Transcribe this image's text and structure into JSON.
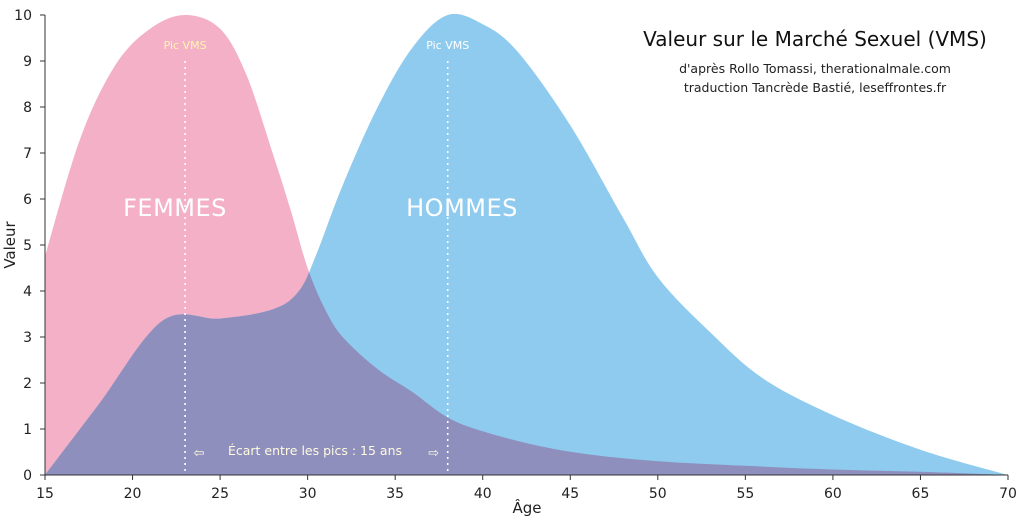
{
  "chart_data": {
    "type": "area",
    "title": "Valeur sur le Marché Sexuel (VMS)",
    "subtitle_lines": [
      "d'après Rollo Tomassi, therationalmale.com",
      "traduction Tancrède Bastié, leseffrontes.fr"
    ],
    "xlabel": "Âge",
    "ylabel": "Valeur",
    "xlim": [
      15,
      70
    ],
    "ylim": [
      0,
      10
    ],
    "x_ticks": [
      15,
      20,
      25,
      30,
      35,
      40,
      45,
      50,
      55,
      60,
      65,
      70
    ],
    "y_ticks": [
      0,
      1,
      2,
      3,
      4,
      5,
      6,
      7,
      8,
      9,
      10
    ],
    "grid": false,
    "series": [
      {
        "name": "FEMMES",
        "color": "#f4b0c6",
        "points": [
          [
            15,
            4.75
          ],
          [
            17,
            7.3
          ],
          [
            19,
            8.9
          ],
          [
            21,
            9.7
          ],
          [
            23,
            10
          ],
          [
            25,
            9.7
          ],
          [
            26.5,
            8.7
          ],
          [
            28,
            7
          ],
          [
            29,
            5.8
          ],
          [
            30,
            4.5
          ],
          [
            31,
            3.6
          ],
          [
            32,
            3.0
          ],
          [
            34,
            2.3
          ],
          [
            36,
            1.8
          ],
          [
            38,
            1.25
          ],
          [
            40,
            0.95
          ],
          [
            43,
            0.65
          ],
          [
            46,
            0.45
          ],
          [
            50,
            0.3
          ],
          [
            55,
            0.2
          ],
          [
            60,
            0.12
          ],
          [
            65,
            0.07
          ],
          [
            70,
            0
          ]
        ],
        "peak_x": 23
      },
      {
        "name": "HOMMES",
        "color": "#8ecbef",
        "points": [
          [
            15,
            0
          ],
          [
            18,
            1.5
          ],
          [
            21.7,
            3.35
          ],
          [
            25,
            3.4
          ],
          [
            28,
            3.6
          ],
          [
            29.5,
            4
          ],
          [
            30.5,
            4.8
          ],
          [
            32,
            6.3
          ],
          [
            34,
            8
          ],
          [
            36,
            9.3
          ],
          [
            38,
            10
          ],
          [
            40,
            9.8
          ],
          [
            42,
            9.2
          ],
          [
            45,
            7.6
          ],
          [
            48,
            5.6
          ],
          [
            50,
            4.3
          ],
          [
            53,
            3.1
          ],
          [
            56,
            2.1
          ],
          [
            60,
            1.3
          ],
          [
            65,
            0.55
          ],
          [
            70,
            0
          ]
        ],
        "peak_x": 38
      }
    ],
    "overlap_color": "#8e8fbd",
    "annotations": {
      "peak_label": "Pic VMS",
      "gap_text": "Écart entre les pics : 15 ans",
      "gap_from": 23,
      "gap_to": 38
    }
  }
}
